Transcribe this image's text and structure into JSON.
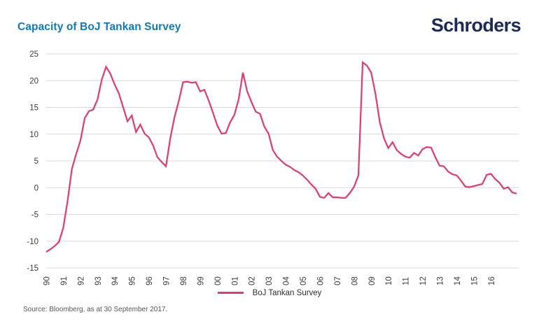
{
  "header": {
    "title": "Capacity of BoJ Tankan Survey",
    "logo": "Schroders"
  },
  "legend": {
    "label": "BoJ Tankan Survey"
  },
  "footer": {
    "source": "Source: Bloomberg, as at 30 September 2017."
  },
  "colors": {
    "title_blue": "#0d7ac4",
    "logo_navy": "#1b2a5a",
    "line_pink": "#e8386d",
    "gridline": "#d9d9d9",
    "axis_text": "#3c3c3c"
  },
  "chart_data": {
    "type": "line",
    "title": "Capacity of BoJ Tankan Survey",
    "frequency": "quarterly",
    "x_start": "1990 Q1",
    "x_end": "2017 Q3",
    "grid": "horizontal",
    "legend_position": "bottom-center",
    "y": {
      "min": -15,
      "max": 25,
      "step": 5,
      "tick_labels": [
        25,
        20,
        15,
        10,
        5,
        0,
        -5,
        -10,
        -15
      ]
    },
    "x": {
      "tick_labels": [
        "90",
        "91",
        "92",
        "93",
        "94",
        "95",
        "96",
        "97",
        "98",
        "99",
        "00",
        "01",
        "02",
        "03",
        "04",
        "05",
        "06",
        "07",
        "08",
        "09",
        "10",
        "11",
        "12",
        "13",
        "14",
        "15",
        "16"
      ],
      "ticks_every_n_points": 4
    },
    "series": [
      {
        "name": "BoJ Tankan Survey",
        "color": "#e8386d",
        "values": [
          -12.0,
          -11.5,
          -10.9,
          -10.1,
          -7.5,
          -2.5,
          3.5,
          6.3,
          8.8,
          13.0,
          14.3,
          14.6,
          16.5,
          20.2,
          22.6,
          21.3,
          19.3,
          17.6,
          15.0,
          12.4,
          13.5,
          10.4,
          11.8,
          10.1,
          9.4,
          7.9,
          5.7,
          4.8,
          4.0,
          9.2,
          13.2,
          16.2,
          19.7,
          19.8,
          19.6,
          19.7,
          18.0,
          18.3,
          16.3,
          14.0,
          11.6,
          10.1,
          10.2,
          12.2,
          13.6,
          16.5,
          21.5,
          18.0,
          16.0,
          14.2,
          13.8,
          11.4,
          10.1,
          7.0,
          5.8,
          5.0,
          4.3,
          3.9,
          3.3,
          2.9,
          2.3,
          1.5,
          0.6,
          -0.2,
          -1.7,
          -1.9,
          -1.0,
          -1.8,
          -1.8,
          -1.9,
          -1.9,
          -1.0,
          0.2,
          2.3,
          23.4,
          22.8,
          21.5,
          17.5,
          12.3,
          9.2,
          7.4,
          8.5,
          7.0,
          6.3,
          5.8,
          5.6,
          6.5,
          6.0,
          7.2,
          7.6,
          7.5,
          5.7,
          4.1,
          4.0,
          3.0,
          2.5,
          2.3,
          1.3,
          0.2,
          0.1,
          0.3,
          0.5,
          0.7,
          2.4,
          2.6,
          1.6,
          0.9,
          -0.2,
          0.1,
          -0.9,
          -1.1
        ]
      }
    ]
  }
}
